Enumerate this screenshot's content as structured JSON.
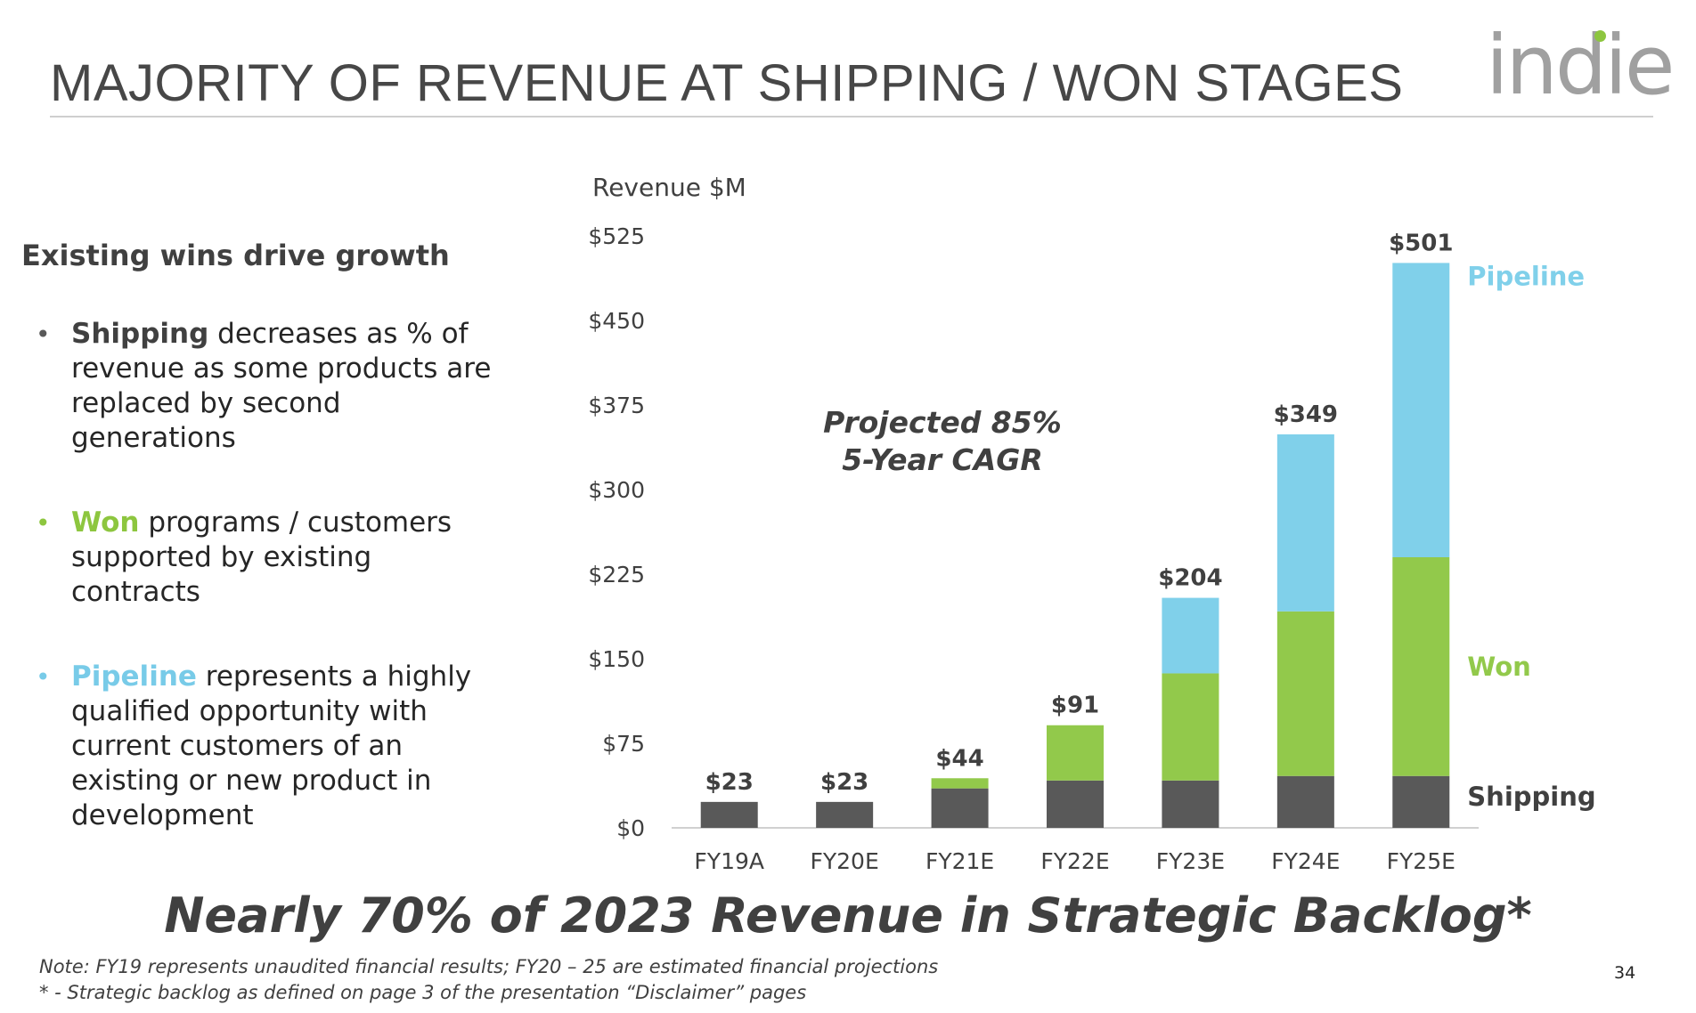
{
  "slide": {
    "title": "MAJORITY OF REVENUE AT SHIPPING / WON STAGES",
    "logo_text": "indie",
    "left_heading": "Existing wins drive growth",
    "bullets": [
      {
        "keyword": "Shipping",
        "text": " decreases as % of revenue as some products are replaced by second generations",
        "color": "#404040"
      },
      {
        "keyword": "Won",
        "text": " programs / customers supported by existing contracts",
        "color": "#8dc63f"
      },
      {
        "keyword": "Pipeline",
        "text": " represents a highly qualified opportunity with current customers of an existing or new product in development",
        "color": "#78cbe8"
      }
    ],
    "tagline": "Nearly 70% of 2023 Revenue in Strategic Backlog*",
    "notes": [
      "Note: FY19 represents unaudited financial results; FY20 – 25 are estimated financial projections",
      "* - Strategic backlog as defined on page 3 of the presentation “Disclaimer” pages"
    ],
    "page_number": "34"
  },
  "chart_data": {
    "type": "bar",
    "stacked": true,
    "ylabel": "Revenue $M",
    "ylim": [
      0,
      525
    ],
    "yticks": [
      0,
      75,
      150,
      225,
      300,
      375,
      450,
      525
    ],
    "ytick_labels": [
      "$0",
      "$75",
      "$150",
      "$225",
      "$300",
      "$375",
      "$450",
      "$525"
    ],
    "categories": [
      "FY19A",
      "FY20E",
      "FY21E",
      "FY22E",
      "FY23E",
      "FY24E",
      "FY25E"
    ],
    "series": [
      {
        "name": "Shipping",
        "color": "#595959",
        "values": [
          23,
          23,
          35,
          42,
          42,
          46,
          46
        ]
      },
      {
        "name": "Won",
        "color": "#92c94b",
        "values": [
          0,
          0,
          9,
          49,
          95,
          146,
          194
        ]
      },
      {
        "name": "Pipeline",
        "color": "#80d0ea",
        "values": [
          0,
          0,
          0,
          0,
          67,
          157,
          261
        ]
      }
    ],
    "totals": [
      23,
      23,
      44,
      91,
      204,
      349,
      501
    ],
    "total_labels": [
      "$23",
      "$23",
      "$44",
      "$91",
      "$204",
      "$349",
      "$501"
    ],
    "annotation": [
      "Projected 85%",
      "5-Year CAGR"
    ],
    "legend_placement": "right, beside last bar",
    "grid": false
  }
}
